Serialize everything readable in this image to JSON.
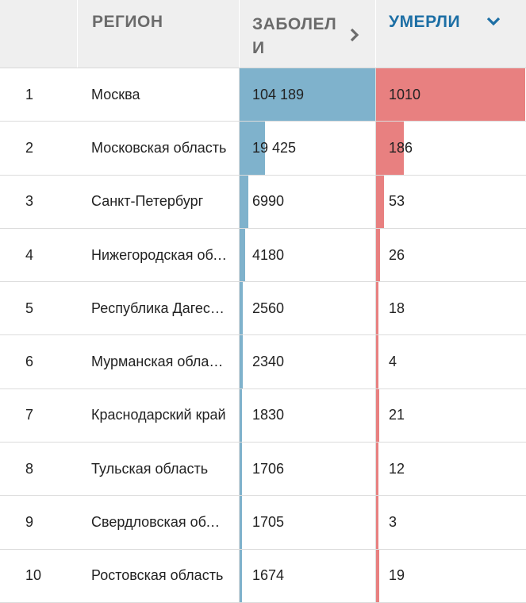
{
  "header": {
    "number": "",
    "region": "РЕГИОН",
    "cases": "ЗАБОЛЕЛИ",
    "deaths": "УМЕРЛИ"
  },
  "icons": {
    "cases_sort": "chevron-right-icon",
    "deaths_sort": "chevron-down-icon"
  },
  "colors": {
    "cases_bar": "#7fb2cc",
    "deaths_bar": "#e88080",
    "active_header": "#1d6fa5"
  },
  "rows": [
    {
      "num": "1",
      "region": "Москва",
      "cases": "104 189",
      "deaths": "1010",
      "cases_value": 104189,
      "deaths_value": 1010
    },
    {
      "num": "2",
      "region": "Московская область",
      "cases": "19 425",
      "deaths": "186",
      "cases_value": 19425,
      "deaths_value": 186
    },
    {
      "num": "3",
      "region": "Санкт-Петербург",
      "cases": "6990",
      "deaths": "53",
      "cases_value": 6990,
      "deaths_value": 53
    },
    {
      "num": "4",
      "region": "Нижегородская область",
      "cases": "4180",
      "deaths": "26",
      "cases_value": 4180,
      "deaths_value": 26
    },
    {
      "num": "5",
      "region": "Республика Дагестан",
      "cases": "2560",
      "deaths": "18",
      "cases_value": 2560,
      "deaths_value": 18
    },
    {
      "num": "6",
      "region": "Мурманская область",
      "cases": "2340",
      "deaths": "4",
      "cases_value": 2340,
      "deaths_value": 4
    },
    {
      "num": "7",
      "region": "Краснодарский край",
      "cases": "1830",
      "deaths": "21",
      "cases_value": 1830,
      "deaths_value": 21
    },
    {
      "num": "8",
      "region": "Тульская область",
      "cases": "1706",
      "deaths": "12",
      "cases_value": 1706,
      "deaths_value": 12
    },
    {
      "num": "9",
      "region": "Свердловская область",
      "cases": "1705",
      "deaths": "3",
      "cases_value": 1705,
      "deaths_value": 3
    },
    {
      "num": "10",
      "region": "Ростовская область",
      "cases": "1674",
      "deaths": "19",
      "cases_value": 1674,
      "deaths_value": 19
    }
  ]
}
